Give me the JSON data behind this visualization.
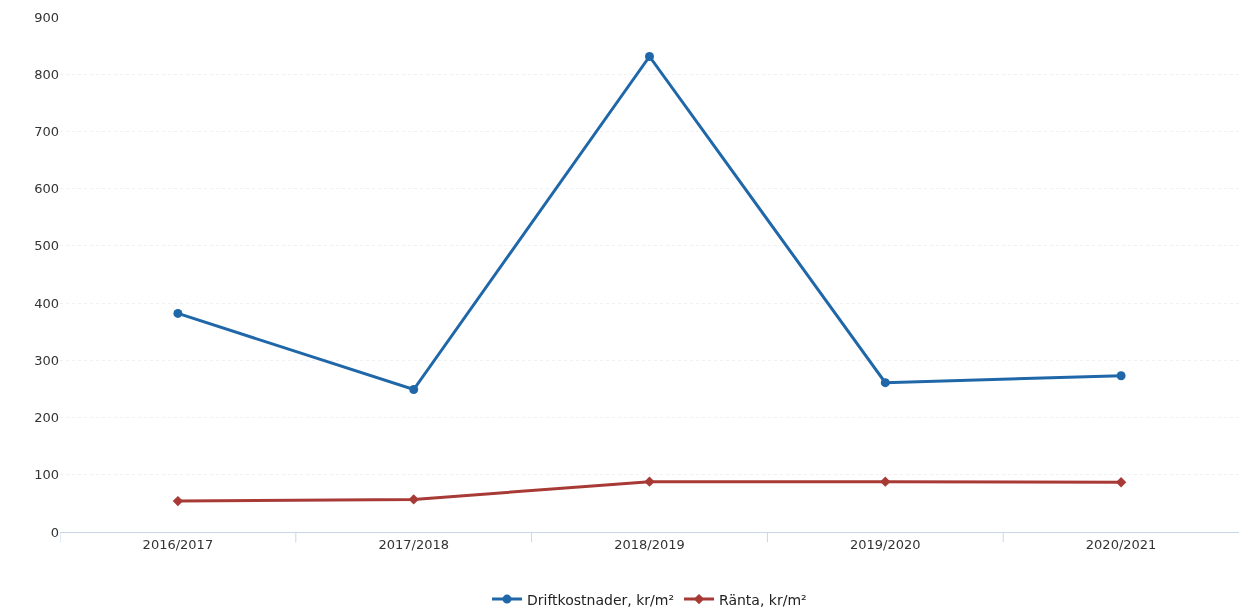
{
  "chart_data": {
    "type": "line",
    "categories": [
      "2016/2017",
      "2017/2018",
      "2018/2019",
      "2019/2020",
      "2020/2021"
    ],
    "series": [
      {
        "name": "Driftkostnader, kr/m²",
        "color": "#1f67a8",
        "marker": "circle",
        "values": [
          382,
          249,
          831,
          261,
          273
        ]
      },
      {
        "name": "Ränta, kr/m²",
        "color": "#a83a36",
        "marker": "diamond",
        "values": [
          54,
          57,
          88,
          88,
          87
        ]
      }
    ],
    "ylim": [
      0,
      900
    ],
    "yticks": [
      0,
      100,
      200,
      300,
      400,
      500,
      600,
      700,
      800,
      900
    ],
    "grid": "y",
    "legend": "bottom",
    "line_style": "solid"
  }
}
